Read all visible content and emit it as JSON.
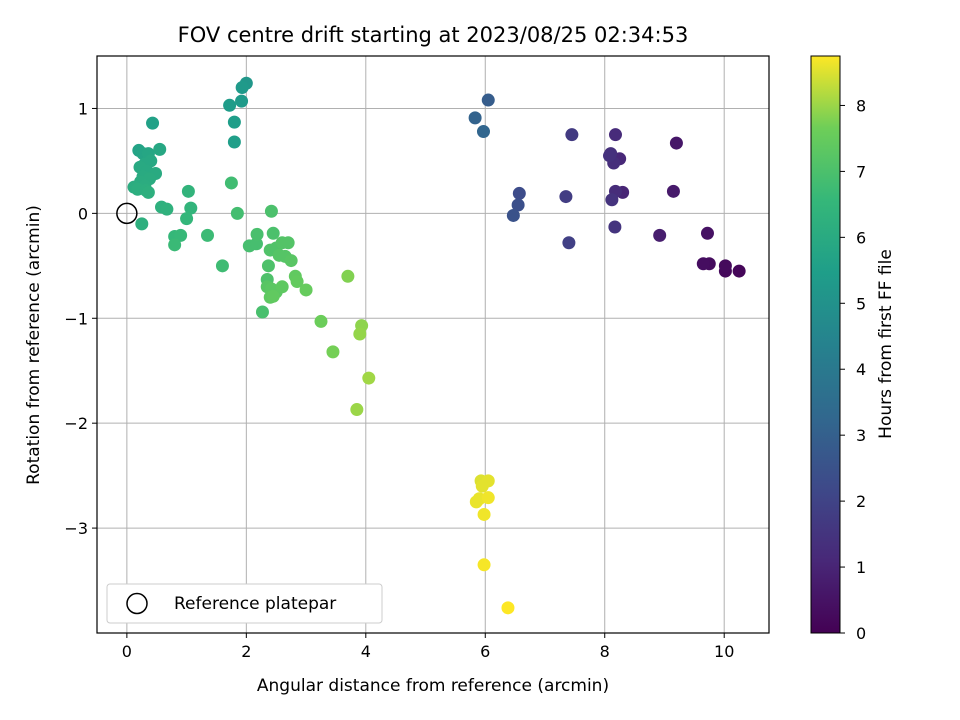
{
  "chart_data": {
    "type": "scatter",
    "title": "FOV centre drift starting at 2023/08/25 02:34:53",
    "xlabel": "Angular distance from reference (arcmin)",
    "ylabel": "Rotation from reference (arcmin)",
    "xlim": [
      -0.5,
      10.75
    ],
    "ylim": [
      -4.0,
      1.5
    ],
    "xticks": [
      0,
      2,
      4,
      6,
      8,
      10
    ],
    "yticks": [
      -3,
      -2,
      -1,
      0,
      1
    ],
    "grid": true,
    "legend": {
      "placement": "bottom-left",
      "label": "Reference platepar"
    },
    "reference_point": {
      "x": 0.0,
      "y": 0.0
    },
    "colorbar": {
      "label": "Hours from first FF file",
      "colormap": "viridis",
      "range": [
        0,
        8.75
      ],
      "ticks": [
        0,
        1,
        2,
        3,
        4,
        5,
        6,
        7,
        8
      ]
    },
    "points": [
      {
        "x": 10.25,
        "y": -0.55,
        "c": 0.15
      },
      {
        "x": 10.02,
        "y": -0.55,
        "c": 0.2
      },
      {
        "x": 10.02,
        "y": -0.5,
        "c": 0.25
      },
      {
        "x": 9.75,
        "y": -0.48,
        "c": 0.3
      },
      {
        "x": 9.65,
        "y": -0.48,
        "c": 0.35
      },
      {
        "x": 9.72,
        "y": -0.19,
        "c": 0.45
      },
      {
        "x": 9.2,
        "y": 0.67,
        "c": 0.6
      },
      {
        "x": 9.15,
        "y": 0.21,
        "c": 0.7
      },
      {
        "x": 8.92,
        "y": -0.21,
        "c": 0.8
      },
      {
        "x": 8.3,
        "y": 0.2,
        "c": 1.0
      },
      {
        "x": 8.25,
        "y": 0.52,
        "c": 1.1
      },
      {
        "x": 8.18,
        "y": 0.75,
        "c": 1.2
      },
      {
        "x": 8.18,
        "y": 0.21,
        "c": 1.25
      },
      {
        "x": 8.15,
        "y": 0.48,
        "c": 1.3
      },
      {
        "x": 8.1,
        "y": 0.57,
        "c": 1.35
      },
      {
        "x": 8.08,
        "y": 0.55,
        "c": 1.4
      },
      {
        "x": 8.12,
        "y": 0.13,
        "c": 1.45
      },
      {
        "x": 8.17,
        "y": -0.13,
        "c": 1.5
      },
      {
        "x": 7.45,
        "y": 0.75,
        "c": 1.7
      },
      {
        "x": 7.35,
        "y": 0.16,
        "c": 1.8
      },
      {
        "x": 7.4,
        "y": -0.28,
        "c": 1.9
      },
      {
        "x": 6.57,
        "y": 0.19,
        "c": 2.3
      },
      {
        "x": 6.55,
        "y": 0.08,
        "c": 2.4
      },
      {
        "x": 6.47,
        "y": -0.02,
        "c": 2.5
      },
      {
        "x": 6.05,
        "y": 1.08,
        "c": 2.9
      },
      {
        "x": 5.83,
        "y": 0.91,
        "c": 3.1
      },
      {
        "x": 5.97,
        "y": 0.78,
        "c": 3.2
      },
      {
        "x": 2.0,
        "y": 1.24,
        "c": 5.2
      },
      {
        "x": 1.93,
        "y": 1.2,
        "c": 5.3
      },
      {
        "x": 1.92,
        "y": 1.07,
        "c": 5.35
      },
      {
        "x": 1.72,
        "y": 1.03,
        "c": 5.4
      },
      {
        "x": 1.8,
        "y": 0.87,
        "c": 5.45
      },
      {
        "x": 1.8,
        "y": 0.68,
        "c": 5.5
      },
      {
        "x": 0.43,
        "y": 0.86,
        "c": 5.6
      },
      {
        "x": 0.2,
        "y": 0.6,
        "c": 5.7
      },
      {
        "x": 0.27,
        "y": 0.57,
        "c": 5.75
      },
      {
        "x": 0.36,
        "y": 0.57,
        "c": 5.8
      },
      {
        "x": 0.55,
        "y": 0.61,
        "c": 5.85
      },
      {
        "x": 0.4,
        "y": 0.5,
        "c": 5.9
      },
      {
        "x": 0.3,
        "y": 0.47,
        "c": 5.9
      },
      {
        "x": 0.22,
        "y": 0.44,
        "c": 5.95
      },
      {
        "x": 0.34,
        "y": 0.4,
        "c": 5.95
      },
      {
        "x": 0.48,
        "y": 0.38,
        "c": 6.0
      },
      {
        "x": 0.27,
        "y": 0.35,
        "c": 6.0
      },
      {
        "x": 0.38,
        "y": 0.33,
        "c": 6.05
      },
      {
        "x": 0.23,
        "y": 0.3,
        "c": 6.05
      },
      {
        "x": 0.3,
        "y": 0.26,
        "c": 6.1
      },
      {
        "x": 0.12,
        "y": 0.25,
        "c": 6.1
      },
      {
        "x": 0.18,
        "y": 0.23,
        "c": 6.15
      },
      {
        "x": 0.32,
        "y": 0.22,
        "c": 6.15
      },
      {
        "x": 0.36,
        "y": 0.2,
        "c": 6.2
      },
      {
        "x": 0.25,
        "y": -0.1,
        "c": 6.2
      },
      {
        "x": 0.58,
        "y": 0.06,
        "c": 6.25
      },
      {
        "x": 0.67,
        "y": 0.04,
        "c": 6.3
      },
      {
        "x": 1.03,
        "y": 0.21,
        "c": 6.4
      },
      {
        "x": 1.07,
        "y": 0.05,
        "c": 6.45
      },
      {
        "x": 1.0,
        "y": -0.05,
        "c": 6.5
      },
      {
        "x": 0.8,
        "y": -0.22,
        "c": 6.55
      },
      {
        "x": 0.9,
        "y": -0.21,
        "c": 6.6
      },
      {
        "x": 0.8,
        "y": -0.3,
        "c": 6.65
      },
      {
        "x": 1.35,
        "y": -0.21,
        "c": 6.7
      },
      {
        "x": 1.6,
        "y": -0.5,
        "c": 6.75
      },
      {
        "x": 1.75,
        "y": 0.29,
        "c": 6.8
      },
      {
        "x": 1.85,
        "y": 0.0,
        "c": 6.85
      },
      {
        "x": 2.05,
        "y": -0.31,
        "c": 6.9
      },
      {
        "x": 2.17,
        "y": -0.29,
        "c": 6.9
      },
      {
        "x": 2.18,
        "y": -0.2,
        "c": 6.95
      },
      {
        "x": 2.27,
        "y": -0.94,
        "c": 6.95
      },
      {
        "x": 2.42,
        "y": 0.02,
        "c": 7.0
      },
      {
        "x": 2.45,
        "y": -0.19,
        "c": 7.0
      },
      {
        "x": 2.37,
        "y": -0.5,
        "c": 7.05
      },
      {
        "x": 2.35,
        "y": -0.63,
        "c": 7.05
      },
      {
        "x": 2.4,
        "y": -0.35,
        "c": 7.1
      },
      {
        "x": 2.5,
        "y": -0.33,
        "c": 7.1
      },
      {
        "x": 2.6,
        "y": -0.28,
        "c": 7.15
      },
      {
        "x": 2.7,
        "y": -0.28,
        "c": 7.15
      },
      {
        "x": 2.55,
        "y": -0.4,
        "c": 7.2
      },
      {
        "x": 2.65,
        "y": -0.41,
        "c": 7.2
      },
      {
        "x": 2.75,
        "y": -0.45,
        "c": 7.25
      },
      {
        "x": 2.35,
        "y": -0.7,
        "c": 7.25
      },
      {
        "x": 2.42,
        "y": -0.72,
        "c": 7.3
      },
      {
        "x": 2.5,
        "y": -0.75,
        "c": 7.3
      },
      {
        "x": 2.6,
        "y": -0.7,
        "c": 7.35
      },
      {
        "x": 2.4,
        "y": -0.8,
        "c": 7.35
      },
      {
        "x": 2.45,
        "y": -0.79,
        "c": 7.4
      },
      {
        "x": 2.82,
        "y": -0.6,
        "c": 7.4
      },
      {
        "x": 2.85,
        "y": -0.65,
        "c": 7.45
      },
      {
        "x": 3.0,
        "y": -0.73,
        "c": 7.5
      },
      {
        "x": 3.25,
        "y": -1.03,
        "c": 7.6
      },
      {
        "x": 3.45,
        "y": -1.32,
        "c": 7.7
      },
      {
        "x": 3.7,
        "y": -0.6,
        "c": 7.8
      },
      {
        "x": 3.93,
        "y": -1.07,
        "c": 7.9
      },
      {
        "x": 3.9,
        "y": -1.15,
        "c": 7.95
      },
      {
        "x": 3.85,
        "y": -1.87,
        "c": 8.0
      },
      {
        "x": 4.05,
        "y": -1.57,
        "c": 8.05
      },
      {
        "x": 5.93,
        "y": -2.55,
        "c": 8.5
      },
      {
        "x": 6.05,
        "y": -2.55,
        "c": 8.55
      },
      {
        "x": 5.95,
        "y": -2.6,
        "c": 8.55
      },
      {
        "x": 5.85,
        "y": -2.75,
        "c": 8.6
      },
      {
        "x": 5.9,
        "y": -2.72,
        "c": 8.6
      },
      {
        "x": 6.05,
        "y": -2.71,
        "c": 8.65
      },
      {
        "x": 5.98,
        "y": -2.87,
        "c": 8.65
      },
      {
        "x": 5.98,
        "y": -3.35,
        "c": 8.7
      },
      {
        "x": 6.38,
        "y": -3.76,
        "c": 8.75
      }
    ]
  }
}
